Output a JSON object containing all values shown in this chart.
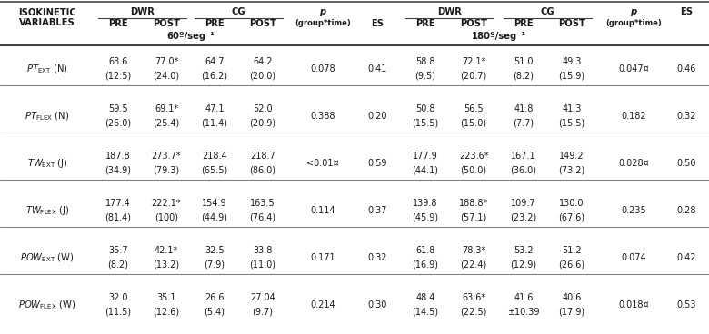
{
  "bg_color": "#ffffff",
  "text_color": "#1a1a1a",
  "line_color": "#444444",
  "vel_60": "60º/seg⁻¹",
  "vel_180": "180º/seg⁻¹",
  "font_size_header": 7.2,
  "font_size_sub": 6.5,
  "font_size_data": 7.0,
  "rows": [
    {
      "label_main": "PT",
      "label_sub": "EXT",
      "label_unit": "(N)",
      "data_60": [
        "63.6",
        "77.0*",
        "64.7",
        "64.2",
        "0.078",
        "0.41"
      ],
      "data_60_sd": [
        "(12.5)",
        "(24.0)",
        "(16.2)",
        "(20.0)",
        "",
        ""
      ],
      "data_180": [
        "58.8",
        "72.1*",
        "51.0",
        "49.3",
        "0.047¤",
        "0.46"
      ],
      "data_180_sd": [
        "(9.5)",
        "(20.7)",
        "(8.2)",
        "(15.9)",
        "",
        ""
      ]
    },
    {
      "label_main": "PT",
      "label_sub": "FLEX",
      "label_unit": "(N)",
      "data_60": [
        "59.5",
        "69.1*",
        "47.1",
        "52.0",
        "0.388",
        "0.20"
      ],
      "data_60_sd": [
        "(26.0)",
        "(25.4)",
        "(11.4)",
        "(20.9)",
        "",
        ""
      ],
      "data_180": [
        "50.8",
        "56.5",
        "41.8",
        "41.3",
        "0.182",
        "0.32"
      ],
      "data_180_sd": [
        "(15.5)",
        "(15.0)",
        "(7.7)",
        "(15.5)",
        "",
        ""
      ]
    },
    {
      "label_main": "TW",
      "label_sub": "EXT",
      "label_unit": "(J)",
      "data_60": [
        "187.8",
        "273.7*",
        "218.4",
        "218.7",
        "<0.01¤",
        "0.59"
      ],
      "data_60_sd": [
        "(34.9)",
        "(79.3)",
        "(65.5)",
        "(86.0)",
        "",
        ""
      ],
      "data_180": [
        "177.9",
        "223.6*",
        "167.1",
        "149.2",
        "0.028¤",
        "0.50"
      ],
      "data_180_sd": [
        "(44.1)",
        "(50.0)",
        "(36.0)",
        "(73.2)",
        "",
        ""
      ]
    },
    {
      "label_main": "TW",
      "label_sub": "FLEX",
      "label_unit": "(J)",
      "data_60": [
        "177.4",
        "222.1*",
        "154.9",
        "163.5",
        "0.114",
        "0.37"
      ],
      "data_60_sd": [
        "(81.4)",
        "(100)",
        "(44.9)",
        "(76.4)",
        "",
        ""
      ],
      "data_180": [
        "139.8",
        "188.8*",
        "109.7",
        "130.0",
        "0.235",
        "0.28"
      ],
      "data_180_sd": [
        "(45.9)",
        "(57.1)",
        "(23.2)",
        "(67.6)",
        "",
        ""
      ]
    },
    {
      "label_main": "POW",
      "label_sub": "EXT",
      "label_unit": "(W)",
      "data_60": [
        "35.7",
        "42.1*",
        "32.5",
        "33.8",
        "0.171",
        "0.32"
      ],
      "data_60_sd": [
        "(8.2)",
        "(13.2)",
        "(7.9)",
        "(11.0)",
        "",
        ""
      ],
      "data_180": [
        "61.8",
        "78.3*",
        "53.2",
        "51.2",
        "0.074",
        "0.42"
      ],
      "data_180_sd": [
        "(16.9)",
        "(22.4)",
        "(12.9)",
        "(26.6)",
        "",
        ""
      ]
    },
    {
      "label_main": "POW",
      "label_sub": "FLEX",
      "label_unit": "(W)",
      "data_60": [
        "32.0",
        "35.1",
        "26.6",
        "27.04",
        "0.214",
        "0.30"
      ],
      "data_60_sd": [
        "(11.5)",
        "(12.6)",
        "(5.4)",
        "(9.7)",
        "",
        ""
      ],
      "data_180": [
        "48.4",
        "63.6*",
        "41.6",
        "40.6",
        "0.018¤",
        "0.53"
      ],
      "data_180_sd": [
        "(14.5)",
        "(22.5)",
        "±10.39",
        "(17.9)",
        "",
        ""
      ]
    }
  ]
}
